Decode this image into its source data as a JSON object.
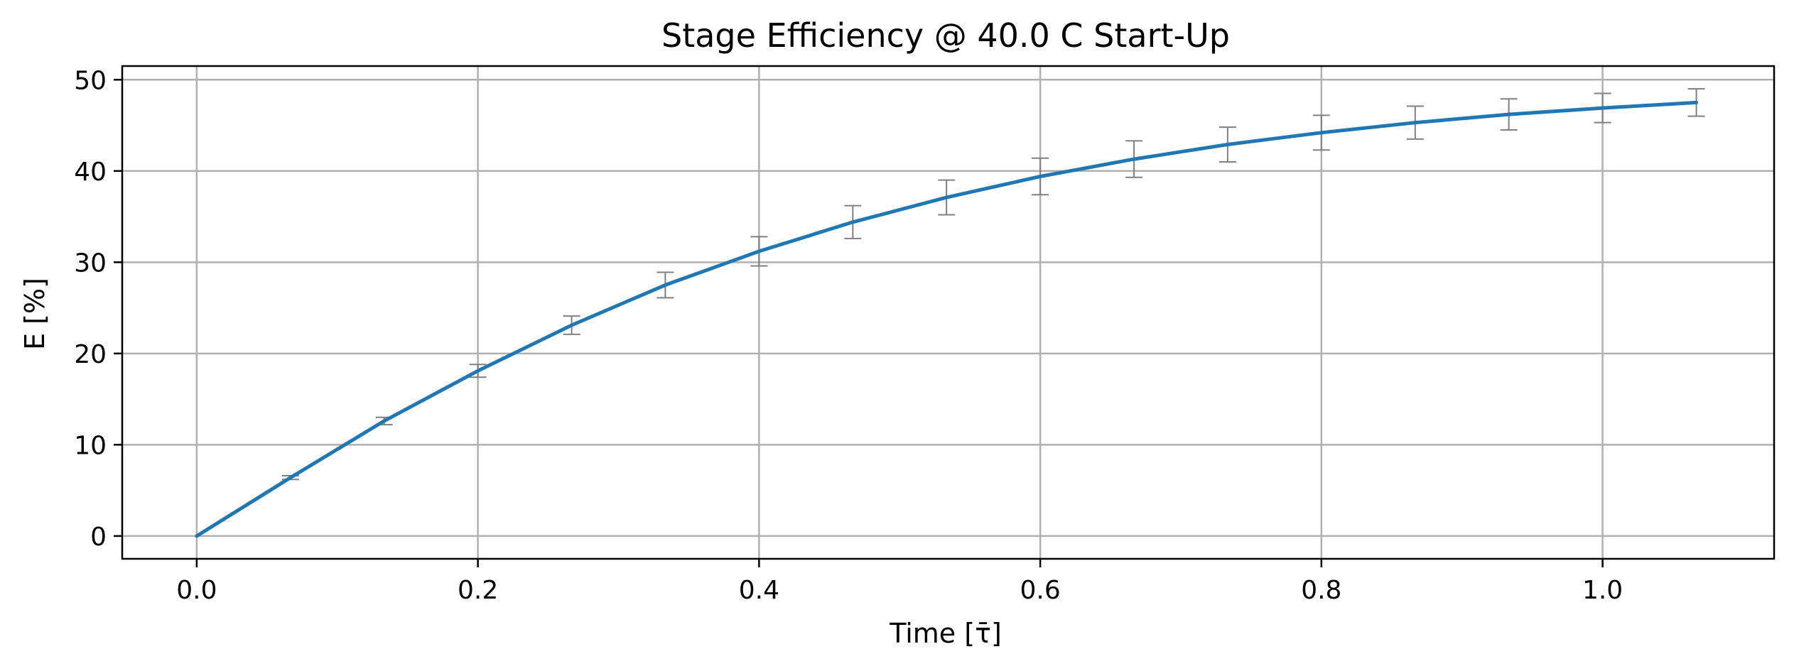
{
  "chart_data": {
    "type": "line",
    "title": "Stage Efficiency @ 40.0 C Start-Up",
    "xlabel": "Time [τ̄]",
    "ylabel": "E [%]",
    "xlim": [
      -0.053,
      1.122
    ],
    "ylim": [
      -2.5,
      51.5
    ],
    "x_ticks": [
      0.0,
      0.2,
      0.4,
      0.6,
      0.8,
      1.0
    ],
    "x_tick_labels": [
      "0.0",
      "0.2",
      "0.4",
      "0.6",
      "0.8",
      "1.0"
    ],
    "y_ticks": [
      0,
      10,
      20,
      30,
      40,
      50
    ],
    "y_tick_labels": [
      "0",
      "10",
      "20",
      "30",
      "40",
      "50"
    ],
    "grid": true,
    "legend": "none",
    "colors": {
      "line": "#1f77b4",
      "errorbar": "#808080",
      "grid": "#b0b0b0",
      "axes": "#000000"
    },
    "series": [
      {
        "x": [
          0.0,
          0.0667,
          0.1333,
          0.2,
          0.2667,
          0.3333,
          0.4,
          0.4667,
          0.5333,
          0.6,
          0.6667,
          0.7333,
          0.8,
          0.8667,
          0.9333,
          1.0,
          1.0667
        ],
        "y": [
          0.0,
          6.4,
          12.6,
          18.1,
          23.1,
          27.5,
          31.2,
          34.4,
          37.1,
          39.4,
          41.3,
          42.9,
          44.2,
          45.3,
          46.2,
          46.9,
          47.5
        ],
        "error": [
          0.0,
          0.2,
          0.4,
          0.7,
          1.0,
          1.4,
          1.6,
          1.8,
          1.9,
          2.0,
          2.0,
          1.9,
          1.9,
          1.8,
          1.7,
          1.6,
          1.5
        ]
      }
    ]
  }
}
